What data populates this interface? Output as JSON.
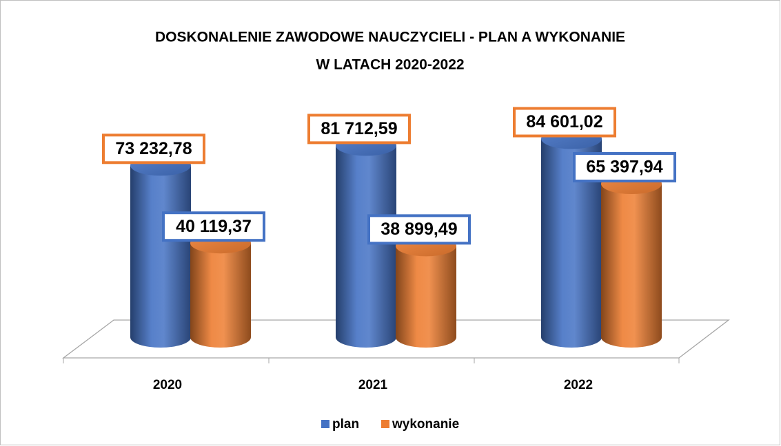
{
  "chart_data": {
    "type": "bar3d-cylinder",
    "title": "DOSKONALENIE ZAWODOWE NAUCZYCIELI - PLAN A WYKONANIE",
    "subtitle": "W LATACH 2020-2022",
    "categories": [
      "2020",
      "2021",
      "2022"
    ],
    "series": [
      {
        "name": "plan",
        "color": "#4472c4",
        "values": [
          73232.78,
          81712.59,
          84601.02
        ],
        "value_labels": [
          "73 232,78",
          "81 712,59",
          "84 601,02"
        ]
      },
      {
        "name": "wykonanie",
        "color": "#ed7d31",
        "values": [
          40119.37,
          38899.49,
          65397.94
        ],
        "value_labels": [
          "40 119,37",
          "38 899,49",
          "65 397,94"
        ]
      }
    ],
    "ylim": [
      0,
      100000
    ],
    "legend": "bottom"
  }
}
